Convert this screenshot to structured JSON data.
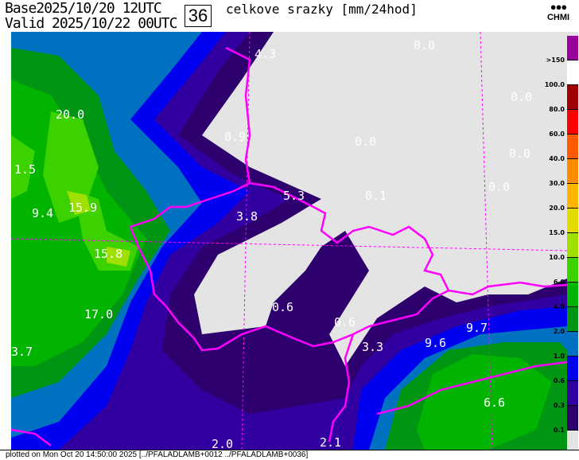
{
  "header": {
    "base_label": "Base",
    "base_time": "2025/10/20 12UTC",
    "valid_label": "Valid",
    "valid_time": "2025/10/22 00UTC",
    "lead_hours": "36",
    "title": "celkove srazky [mm/24hod]",
    "logo_text": "CHMI",
    "logo_mark": "●●●"
  },
  "legend": {
    "labels": [
      ">150",
      "100.0",
      "80.0",
      "60.0",
      "40.0",
      "30.0",
      "20.0",
      "15.0",
      "10.0",
      "6.0",
      "4.0",
      "2.0",
      "1.0",
      "0.6",
      "0.3",
      "0.1"
    ],
    "colors": [
      "#990099",
      "#ffffff",
      "#a00000",
      "#ff0000",
      "#ff5a00",
      "#ff8c00",
      "#ffb400",
      "#e4dc00",
      "#a0e000",
      "#3cd200",
      "#00b400",
      "#009614",
      "#0070c0",
      "#0000f0",
      "#3200a0",
      "#2d006e",
      "#e4e4e4"
    ]
  },
  "map": {
    "background": "#e4e4e4",
    "border_color": "#ff00ff",
    "values": [
      {
        "text": "4.3"
      },
      {
        "text": "0.0"
      },
      {
        "text": "0.0"
      },
      {
        "text": "20.0"
      },
      {
        "text": "0.9"
      },
      {
        "text": "0.0"
      },
      {
        "text": "1.5"
      },
      {
        "text": "5.3"
      },
      {
        "text": "0.1"
      },
      {
        "text": "0.0"
      },
      {
        "text": "0.0"
      },
      {
        "text": "9.4"
      },
      {
        "text": "15.9"
      },
      {
        "text": "3.8"
      },
      {
        "text": "15.8"
      },
      {
        "text": "0.6"
      },
      {
        "text": "0.6"
      },
      {
        "text": "17.0"
      },
      {
        "text": "3.7"
      },
      {
        "text": "9.7"
      },
      {
        "text": "9.6"
      },
      {
        "text": "3.3"
      },
      {
        "text": "6.6"
      },
      {
        "text": "2.0"
      },
      {
        "text": "2.1"
      }
    ]
  },
  "footer": {
    "text": "plotted on Mon Oct 20 14:50:00 2025 [../PFALADLAMB+0012 ../PFALADLAMB+0036]"
  }
}
